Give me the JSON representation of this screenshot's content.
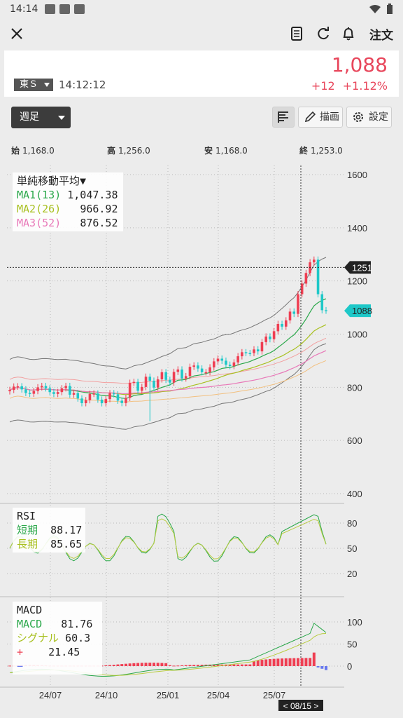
{
  "status_bar": {
    "time": "14:14"
  },
  "app_bar": {
    "order_label": "注文"
  },
  "quote": {
    "market": "東Ｓ",
    "time": "14:12:12",
    "price": "1,088",
    "change": "+12",
    "change_pct": "+1.12%"
  },
  "toolbar": {
    "period": "週足",
    "draw_label": "描画",
    "settings_label": "設定"
  },
  "ohlc": {
    "open_label": "始",
    "open": "1,168.0",
    "high_label": "高",
    "high": "1,256.0",
    "low_label": "安",
    "low": "1,168.0",
    "close_label": "終",
    "close": "1,253.0"
  },
  "price_panel": {
    "legend_title": "単純移動平均▼",
    "ma": [
      {
        "name": "MA1(13)",
        "value": "1,047.38",
        "color": "#2aa84a"
      },
      {
        "name": "MA2(26)",
        "value": "966.92",
        "color": "#a8c020"
      },
      {
        "name": "MA3(52)",
        "value": "876.52",
        "color": "#e878b8"
      }
    ],
    "y_ticks": [
      "1600",
      "1400",
      "1200",
      "1000",
      "800",
      "600",
      "400"
    ],
    "crosshair_price": "1251",
    "last_price_tag": "1088"
  },
  "rsi_panel": {
    "title": "RSI",
    "short_label": "短期",
    "short_value": "88.17",
    "long_label": "長期",
    "long_value": "85.65",
    "y_ticks": [
      "80",
      "50",
      "20"
    ]
  },
  "macd_panel": {
    "title": "MACD",
    "macd_label": "MACD",
    "macd_value": "81.76",
    "signal_label": "シグナル",
    "signal_value": "60.3",
    "plus_label": "+",
    "hist_value": "21.45",
    "minus_label": "−",
    "y_ticks": [
      "100",
      "50",
      "0"
    ]
  },
  "x_axis": {
    "ticks": [
      "24/07",
      "24/10",
      "25/01",
      "25/04",
      "25/07"
    ],
    "crosshair_date": "< 08/15 >"
  },
  "colors": {
    "up": "#ef3e52",
    "down": "#1ec8c8",
    "accent": "#e8475c"
  }
}
